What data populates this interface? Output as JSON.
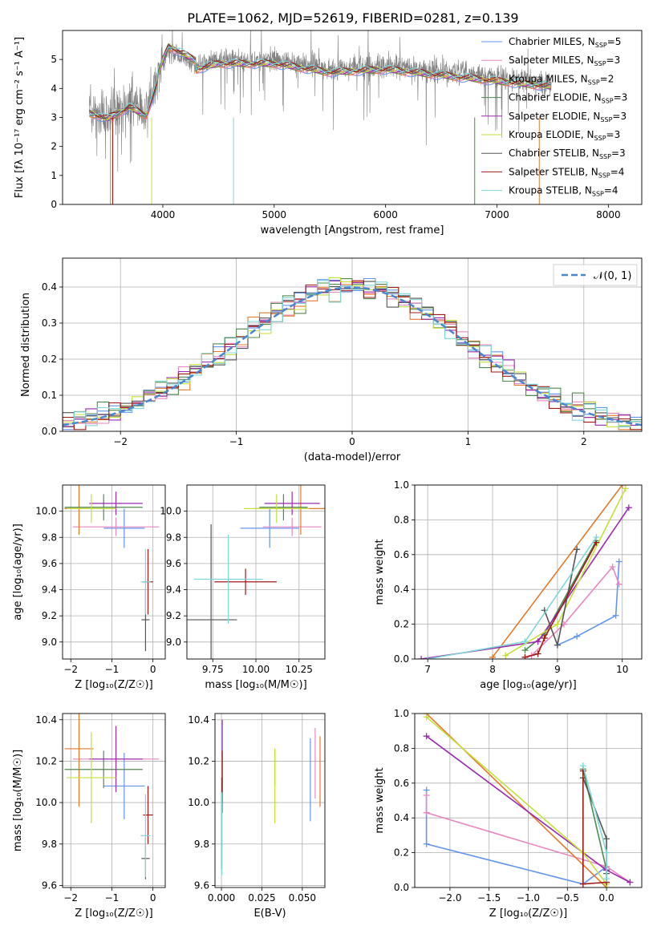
{
  "figure_title": "PLATE=1062, MJD=52619, FIBERID=0281, z=0.139",
  "colors": {
    "data": "#808080",
    "models": [
      "#6495ed",
      "#e887c0",
      "#e37a2a",
      "#4f8a4f",
      "#9a2ab0",
      "#c4e03a",
      "#555555",
      "#a01818",
      "#7fd8d8"
    ]
  },
  "chart_data": [
    {
      "type": "line",
      "title": "PLATE=1062, MJD=52619, FIBERID=0281, z=0.139",
      "xlabel": "wavelength [Angstrom, rest frame]",
      "ylabel": "Flux [fλ 10⁻¹⁷ erg cm⁻² s⁻¹ A⁻¹]",
      "xlim": [
        3100,
        8300
      ],
      "ylim": [
        0,
        6
      ],
      "xticks": [
        "4000",
        "5000",
        "6000",
        "7000",
        "8000"
      ],
      "yticks": [
        "0",
        "1",
        "2",
        "3",
        "4",
        "5"
      ],
      "legend_position": "right",
      "legend": [
        {
          "name": "Chabrier MILES, N",
          "sub": "SSP",
          "tail": "=5"
        },
        {
          "name": "Salpeter MILES, N",
          "sub": "SSP",
          "tail": "=3"
        },
        {
          "name": "Kroupa MILES, N",
          "sub": "SSP",
          "tail": "=2"
        },
        {
          "name": "Chabrier ELODIE, N",
          "sub": "SSP",
          "tail": "=3"
        },
        {
          "name": "Salpeter ELODIE, N",
          "sub": "SSP",
          "tail": "=3"
        },
        {
          "name": "Kroupa ELODIE, N",
          "sub": "SSP",
          "tail": "=3"
        },
        {
          "name": "Chabrier STELIB, N",
          "sub": "SSP",
          "tail": "=3"
        },
        {
          "name": "Salpeter STELIB, N",
          "sub": "SSP",
          "tail": "=4"
        },
        {
          "name": "Kroupa STELIB, N",
          "sub": "SSP",
          "tail": "=4"
        }
      ],
      "data_range": [
        3340,
        7490
      ],
      "envelope": [
        [
          3340,
          3.3
        ],
        [
          3500,
          3.1
        ],
        [
          3700,
          3.5
        ],
        [
          3850,
          3.2
        ],
        [
          3950,
          4.3
        ],
        [
          4050,
          5.3
        ],
        [
          4300,
          4.8
        ],
        [
          4500,
          5.0
        ],
        [
          5000,
          5.0
        ],
        [
          5500,
          4.7
        ],
        [
          6000,
          4.8
        ],
        [
          6500,
          4.6
        ],
        [
          7000,
          4.4
        ],
        [
          7490,
          4.2
        ]
      ]
    },
    {
      "type": "line",
      "xlabel": "(data-model)/error",
      "ylabel": "Normed distribution",
      "xlim": [
        -2.5,
        2.5
      ],
      "ylim": [
        0,
        0.48
      ],
      "xticks": [
        "−2",
        "−1",
        "0",
        "1",
        "2"
      ],
      "yticks": [
        "0.0",
        "0.1",
        "0.2",
        "0.3",
        "0.4"
      ],
      "legend": {
        "label": "𝒩(0, 1)",
        "position": "top-right"
      },
      "bin_width": 0.1
    },
    {
      "type": "scatter",
      "xlabel": "Z [log₁₀(Z/Z☉)]",
      "ylabel": "age  [log₁₀(age/yr)]",
      "xlim": [
        -2.2,
        0.3
      ],
      "ylim": [
        8.87,
        10.2
      ],
      "xticks": [
        "−2",
        "−1",
        "0"
      ],
      "yticks": [
        "9.0",
        "9.2",
        "9.4",
        "9.6",
        "9.8",
        "10.0"
      ],
      "points": [
        {
          "x": -0.7,
          "y": 9.87,
          "xerr": 0.5,
          "yerr": 0.15
        },
        {
          "x": -0.9,
          "y": 9.88,
          "xerr": 1.05,
          "yerr": 0.07
        },
        {
          "x": -1.8,
          "y": 10.02,
          "xerr": 0.35,
          "yerr": 0.2
        },
        {
          "x": -1.2,
          "y": 10.03,
          "xerr": 0.95,
          "yerr": 0.1
        },
        {
          "x": -0.9,
          "y": 10.06,
          "xerr": 0.65,
          "yerr": 0.09
        },
        {
          "x": -1.5,
          "y": 10.02,
          "xerr": 0.6,
          "yerr": 0.11
        },
        {
          "x": -0.18,
          "y": 9.17,
          "xerr": 0.1,
          "yerr": 0.24
        },
        {
          "x": -0.12,
          "y": 9.46,
          "xerr": 0.12,
          "yerr": 0.25
        },
        {
          "x": -0.18,
          "y": 9.46,
          "xerr": 0.12,
          "yerr": 0.25
        }
      ]
    },
    {
      "type": "scatter",
      "xlabel": "mass [log₁₀(M/M☉)]",
      "ylabel": "",
      "xlim": [
        9.6,
        10.4
      ],
      "ylim": [
        8.87,
        10.2
      ],
      "xticks": [
        "9.75",
        "10.00",
        "10.25"
      ],
      "yticks": [
        "9.0",
        "9.2",
        "9.4",
        "9.6",
        "9.8",
        "10.0"
      ],
      "points": [
        {
          "x": 10.08,
          "y": 9.87,
          "xerr": 0.17,
          "yerr": 0.15
        },
        {
          "x": 10.21,
          "y": 9.88,
          "xerr": 0.17,
          "yerr": 0.07
        },
        {
          "x": 10.26,
          "y": 10.02,
          "xerr": 0.27,
          "yerr": 0.2
        },
        {
          "x": 10.16,
          "y": 10.03,
          "xerr": 0.14,
          "yerr": 0.1
        },
        {
          "x": 10.21,
          "y": 10.06,
          "xerr": 0.16,
          "yerr": 0.09
        },
        {
          "x": 10.12,
          "y": 10.02,
          "xerr": 0.19,
          "yerr": 0.11
        },
        {
          "x": 9.74,
          "y": 9.17,
          "xerr": 0.15,
          "yerr": 0.73
        },
        {
          "x": 9.94,
          "y": 9.46,
          "xerr": 0.18,
          "yerr": 0.1
        },
        {
          "x": 9.84,
          "y": 9.48,
          "xerr": 0.2,
          "yerr": 0.34
        }
      ]
    },
    {
      "type": "line",
      "xlabel": "age  [log₁₀(age/yr)]",
      "ylabel": "mass weight",
      "xlim": [
        6.8,
        10.3
      ],
      "ylim": [
        0,
        1
      ],
      "xticks": [
        "7",
        "8",
        "9",
        "10"
      ],
      "yticks": [
        "0.0",
        "0.2",
        "0.4",
        "0.6",
        "0.8",
        "1.0"
      ],
      "series": [
        {
          "points": [
            [
              9.0,
              0.08
            ],
            [
              9.3,
              0.13
            ],
            [
              9.9,
              0.25
            ],
            [
              9.95,
              0.56
            ]
          ]
        },
        {
          "points": [
            [
              8.6,
              0.02
            ],
            [
              9.1,
              0.2
            ],
            [
              9.85,
              0.53
            ],
            [
              9.95,
              0.43
            ]
          ]
        },
        {
          "points": [
            [
              8.0,
              0.01
            ],
            [
              10.0,
              1.0
            ]
          ]
        },
        {
          "points": [
            [
              8.5,
              0.05
            ],
            [
              8.8,
              0.14
            ],
            [
              9.6,
              0.68
            ]
          ]
        },
        {
          "points": [
            [
              6.9,
              0.0
            ],
            [
              8.7,
              0.1
            ],
            [
              10.1,
              0.87
            ]
          ]
        },
        {
          "points": [
            [
              8.2,
              0.02
            ],
            [
              9.0,
              0.2
            ],
            [
              10.05,
              0.98
            ]
          ]
        },
        {
          "points": [
            [
              8.8,
              0.28
            ],
            [
              9.0,
              0.08
            ],
            [
              9.3,
              0.63
            ]
          ]
        },
        {
          "points": [
            [
              8.5,
              0.01
            ],
            [
              8.7,
              0.03
            ],
            [
              8.8,
              0.12
            ],
            [
              9.6,
              0.67
            ]
          ]
        },
        {
          "points": [
            [
              7.0,
              0.0
            ],
            [
              8.5,
              0.1
            ],
            [
              9.6,
              0.7
            ]
          ]
        }
      ]
    },
    {
      "type": "scatter",
      "xlabel": "Z [log₁₀(Z/Z☉)]",
      "ylabel": "mass [log₁₀(M/M☉)]",
      "xlim": [
        -2.2,
        0.3
      ],
      "ylim": [
        9.59,
        10.43
      ],
      "xticks": [
        "−2",
        "−1",
        "0"
      ],
      "yticks": [
        "9.6",
        "9.8",
        "10.0",
        "10.2",
        "10.4"
      ],
      "points": [
        {
          "x": -0.7,
          "y": 10.08,
          "xerr": 0.5,
          "yerr": 0.16
        },
        {
          "x": -0.9,
          "y": 10.21,
          "xerr": 1.05,
          "yerr": 0.1
        },
        {
          "x": -1.8,
          "y": 10.26,
          "xerr": 0.35,
          "yerr": 0.28
        },
        {
          "x": -1.2,
          "y": 10.16,
          "xerr": 0.95,
          "yerr": 0.09
        },
        {
          "x": -0.9,
          "y": 10.21,
          "xerr": 0.65,
          "yerr": 0.16
        },
        {
          "x": -1.5,
          "y": 10.12,
          "xerr": 0.6,
          "yerr": 0.22
        },
        {
          "x": -0.18,
          "y": 9.73,
          "xerr": 0.1,
          "yerr": 0.1
        },
        {
          "x": -0.12,
          "y": 9.94,
          "xerr": 0.12,
          "yerr": 0.14
        },
        {
          "x": -0.18,
          "y": 9.84,
          "xerr": 0.12,
          "yerr": 0.2
        }
      ]
    },
    {
      "type": "scatter",
      "xlabel": "E(B-V)",
      "ylabel": "",
      "xlim": [
        -0.004,
        0.064
      ],
      "ylim": [
        9.59,
        10.43
      ],
      "xticks": [
        "0.000",
        "0.025",
        "0.050"
      ],
      "yticks": [
        "9.6",
        "9.8",
        "10.0",
        "10.2",
        "10.4"
      ],
      "points": [
        {
          "x": 0.055,
          "y": 10.11,
          "yerr": 0.2
        },
        {
          "x": 0.058,
          "y": 10.19,
          "yerr": 0.17
        },
        {
          "x": 0.061,
          "y": 10.15,
          "yerr": 0.17
        },
        {
          "x": 0.033,
          "y": 10.17,
          "yerr": 0.09
        },
        {
          "x": 0.0005,
          "y": 10.2,
          "yerr": 0.2
        },
        {
          "x": 0.033,
          "y": 10.08,
          "yerr": 0.18
        },
        {
          "x": 0.0002,
          "y": 9.9,
          "yerr": 0.22
        },
        {
          "x": 0.0005,
          "y": 10.1,
          "yerr": 0.15
        },
        {
          "x": 0.0003,
          "y": 9.85,
          "yerr": 0.2
        }
      ]
    },
    {
      "type": "line",
      "xlabel": "Z [log₁₀(Z/Z☉)]",
      "ylabel": "mass weight",
      "xlim": [
        -2.45,
        0.45
      ],
      "ylim": [
        0,
        1
      ],
      "xticks": [
        "−2.0",
        "−1.5",
        "−1.0",
        "−0.5",
        "0.0"
      ],
      "yticks": [
        "0.0",
        "0.2",
        "0.4",
        "0.6",
        "0.8",
        "1.0"
      ],
      "series": [
        {
          "points": [
            [
              -2.3,
              0.56
            ],
            [
              -2.3,
              0.25
            ],
            [
              -0.3,
              0.02
            ],
            [
              0.0,
              0.12
            ]
          ]
        },
        {
          "points": [
            [
              -2.3,
              0.53
            ],
            [
              -2.3,
              0.43
            ],
            [
              0.0,
              0.12
            ],
            [
              0.3,
              0.03
            ]
          ]
        },
        {
          "points": [
            [
              -2.3,
              1.0
            ],
            [
              0.0,
              0.0
            ]
          ]
        },
        {
          "points": [
            [
              -0.3,
              0.68
            ],
            [
              0.0,
              0.1
            ],
            [
              0.0,
              0.03
            ]
          ]
        },
        {
          "points": [
            [
              -2.3,
              0.87
            ],
            [
              0.0,
              0.1
            ],
            [
              0.3,
              0.03
            ]
          ]
        },
        {
          "points": [
            [
              -2.3,
              0.98
            ],
            [
              -0.3,
              0.2
            ],
            [
              0.0,
              0.02
            ]
          ]
        },
        {
          "points": [
            [
              -0.3,
              0.63
            ],
            [
              0.0,
              0.28
            ],
            [
              0.0,
              0.08
            ]
          ]
        },
        {
          "points": [
            [
              -0.3,
              0.67
            ],
            [
              -0.3,
              0.02
            ],
            [
              0.0,
              0.03
            ]
          ]
        },
        {
          "points": [
            [
              -0.3,
              0.7
            ],
            [
              0.0,
              0.2
            ],
            [
              0.0,
              0.05
            ]
          ]
        }
      ]
    }
  ]
}
